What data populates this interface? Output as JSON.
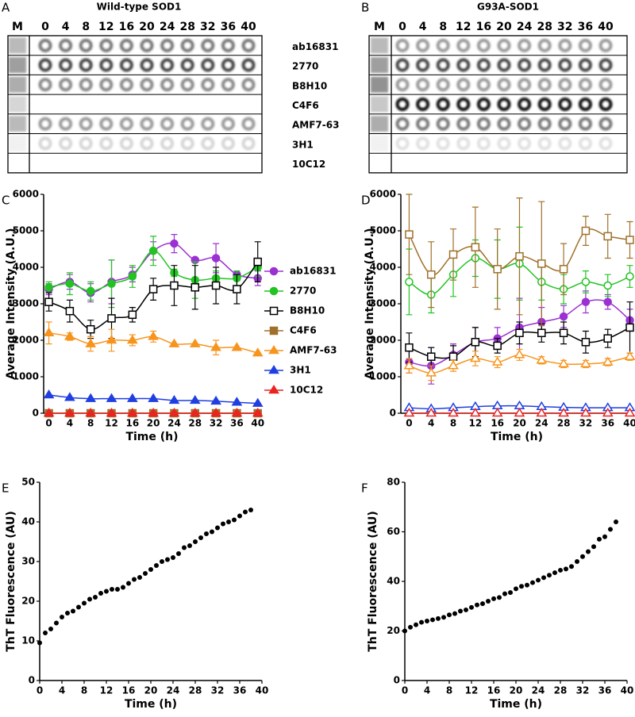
{
  "blots": [
    {
      "panel": "A",
      "title": "Wild-type SOD1",
      "lanes": [
        "M",
        "0",
        "4",
        "8",
        "12",
        "16",
        "20",
        "24",
        "28",
        "32",
        "36",
        "40"
      ]
    },
    {
      "panel": "B",
      "title": "G93A-SOD1",
      "lanes": [
        "M",
        "0",
        "4",
        "8",
        "12",
        "16",
        "20",
        "24",
        "28",
        "32",
        "36",
        "40"
      ]
    }
  ],
  "antibodies": [
    "ab16831",
    "2770",
    "B8H10",
    "C4F6",
    "AMF7-63",
    "3H1",
    "10C12"
  ],
  "chart_data": [
    {
      "type": "line",
      "panel": "C",
      "xlabel": "Time (h)",
      "ylabel": "Average Intensity (A.U.)",
      "xlim": [
        -1,
        40.5
      ],
      "ylim": [
        0,
        6000
      ],
      "xticks": [
        0,
        4,
        8,
        12,
        16,
        20,
        24,
        28,
        32,
        36,
        40
      ],
      "yticks": [
        0,
        1000,
        2000,
        3000,
        4000,
        5000,
        6000
      ],
      "legend": "right",
      "x": [
        0,
        4,
        8,
        12,
        16,
        20,
        24,
        28,
        32,
        36,
        40
      ],
      "series": [
        {
          "name": "ab16831",
          "color": "#9b30d3",
          "marker": "circle",
          "filled": true,
          "values": [
            3400,
            3600,
            3300,
            3600,
            3800,
            4450,
            4650,
            4200,
            4250,
            3800,
            3700
          ],
          "errors": [
            150,
            200,
            250,
            600,
            200,
            250,
            250,
            0,
            400,
            0,
            200
          ]
        },
        {
          "name": "2770",
          "color": "#22c322",
          "marker": "circle",
          "filled": true,
          "values": [
            3450,
            3550,
            3350,
            3550,
            3750,
            4450,
            3850,
            3650,
            3700,
            3700,
            4000
          ],
          "errors": [
            150,
            300,
            250,
            650,
            300,
            400,
            100,
            500,
            200,
            200,
            250
          ]
        },
        {
          "name": "B8H10",
          "color": "#000000",
          "marker": "square",
          "filled": false,
          "values": [
            3050,
            2800,
            2300,
            2600,
            2700,
            3400,
            3500,
            3450,
            3500,
            3400,
            4150
          ],
          "errors": [
            250,
            300,
            250,
            550,
            200,
            300,
            550,
            600,
            500,
            400,
            550
          ]
        },
        {
          "name": "C4F6",
          "color": "#a0702a",
          "marker": "square",
          "filled": true,
          "values": [
            0,
            0,
            0,
            0,
            0,
            0,
            0,
            0,
            0,
            0,
            0
          ]
        },
        {
          "name": "AMF7-63",
          "color": "#f7941d",
          "marker": "triangle",
          "filled": true,
          "values": [
            2200,
            2100,
            1900,
            2000,
            2000,
            2100,
            1900,
            1900,
            1800,
            1800,
            1650
          ],
          "errors": [
            300,
            100,
            200,
            300,
            150,
            150,
            0,
            0,
            200,
            0,
            0
          ]
        },
        {
          "name": "3H1",
          "color": "#1f3fe0",
          "marker": "triangle",
          "filled": true,
          "values": [
            500,
            430,
            400,
            400,
            400,
            400,
            350,
            350,
            330,
            300,
            270
          ]
        },
        {
          "name": "10C12",
          "color": "#e8251f",
          "marker": "triangle",
          "filled": true,
          "values": [
            0,
            0,
            0,
            0,
            0,
            0,
            0,
            0,
            0,
            0,
            0
          ]
        }
      ]
    },
    {
      "type": "line",
      "panel": "D",
      "xlabel": "Time (h)",
      "ylabel": "Average Intensity (A.U.)",
      "xlim": [
        -1.5,
        40.5
      ],
      "ylim": [
        0,
        6000
      ],
      "xticks": [
        0,
        4,
        8,
        12,
        16,
        20,
        24,
        28,
        32,
        36,
        40
      ],
      "yticks": [
        0,
        1000,
        2000,
        3000,
        4000,
        5000,
        6000
      ],
      "x": [
        0,
        4,
        8,
        12,
        16,
        20,
        24,
        28,
        32,
        36,
        40
      ],
      "series": [
        {
          "name": "ab16831",
          "color": "#9b30d3",
          "marker": "circle",
          "filled": true,
          "values": [
            1400,
            1300,
            1600,
            1950,
            2050,
            2350,
            2500,
            2650,
            3050,
            3050,
            2550
          ],
          "errors": [
            300,
            500,
            300,
            400,
            300,
            800,
            400,
            300,
            300,
            200,
            300
          ]
        },
        {
          "name": "2770",
          "color": "#22c322",
          "marker": "circle",
          "filled": false,
          "values": [
            3600,
            3250,
            3800,
            4250,
            3950,
            4100,
            3600,
            3400,
            3600,
            3500,
            3750
          ],
          "errors": [
            900,
            500,
            600,
            500,
            800,
            1000,
            500,
            400,
            300,
            300,
            300
          ]
        },
        {
          "name": "B8H10",
          "color": "#000000",
          "marker": "square",
          "filled": false,
          "values": [
            1800,
            1550,
            1550,
            1950,
            1850,
            2200,
            2200,
            2200,
            1950,
            2050,
            2350
          ],
          "errors": [
            400,
            250,
            300,
            400,
            200,
            300,
            250,
            300,
            300,
            250,
            700
          ]
        },
        {
          "name": "C4F6",
          "color": "#a0702a",
          "marker": "square",
          "filled": false,
          "values": [
            4900,
            3800,
            4350,
            4550,
            3950,
            4300,
            4100,
            3950,
            5000,
            4850,
            4750
          ],
          "errors": [
            1100,
            900,
            700,
            1100,
            1100,
            1600,
            1700,
            700,
            400,
            600,
            500
          ]
        },
        {
          "name": "AMF7-63",
          "color": "#f7941d",
          "marker": "triangle",
          "filled": false,
          "values": [
            1300,
            1100,
            1300,
            1500,
            1400,
            1600,
            1450,
            1350,
            1350,
            1400,
            1550
          ],
          "errors": [
            200,
            200,
            150,
            200,
            150,
            150,
            100,
            100,
            100,
            100,
            100
          ]
        },
        {
          "name": "3H1",
          "color": "#1f3fe0",
          "marker": "triangle",
          "filled": false,
          "values": [
            150,
            120,
            150,
            180,
            200,
            200,
            180,
            160,
            150,
            150,
            150
          ]
        },
        {
          "name": "10C12",
          "color": "#e8251f",
          "marker": "triangle",
          "filled": false,
          "values": [
            0,
            0,
            0,
            0,
            0,
            0,
            0,
            0,
            0,
            0,
            0
          ]
        }
      ]
    },
    {
      "type": "scatter",
      "panel": "E",
      "xlabel": "Time (h)",
      "ylabel": "ThT Fluorescence (AU)",
      "xlim": [
        0,
        40
      ],
      "ylim": [
        0,
        50
      ],
      "xticks": [
        0,
        4,
        8,
        12,
        16,
        20,
        24,
        28,
        32,
        36,
        40
      ],
      "yticks": [
        0,
        10,
        20,
        30,
        40,
        50
      ],
      "color": "#000000",
      "x": [
        0,
        1,
        2,
        3,
        4,
        5,
        6,
        7,
        8,
        9,
        10,
        11,
        12,
        13,
        14,
        15,
        16,
        17,
        18,
        19,
        20,
        21,
        22,
        23,
        24,
        25,
        26,
        27,
        28,
        29,
        30,
        31,
        32,
        33,
        34,
        35,
        36,
        37,
        38
      ],
      "values": [
        9.5,
        12,
        13,
        14.5,
        16,
        17,
        17.5,
        18.5,
        19.5,
        20.5,
        21,
        22,
        22.5,
        23,
        23,
        23.5,
        24.5,
        25.5,
        26,
        27,
        28,
        29,
        30,
        30.5,
        31,
        32,
        33.5,
        34,
        35,
        36,
        37,
        37.5,
        38.5,
        39.5,
        40,
        40.5,
        41.5,
        42.5,
        43
      ]
    },
    {
      "type": "scatter",
      "panel": "F",
      "xlabel": "Time (h)",
      "ylabel": "ThT Fluorescence (AU)",
      "xlim": [
        0,
        40
      ],
      "ylim": [
        0,
        80
      ],
      "xticks": [
        0,
        4,
        8,
        12,
        16,
        20,
        24,
        28,
        32,
        36,
        40
      ],
      "yticks": [
        0,
        20,
        40,
        60,
        80
      ],
      "color": "#000000",
      "x": [
        0,
        1,
        2,
        3,
        4,
        5,
        6,
        7,
        8,
        9,
        10,
        11,
        12,
        13,
        14,
        15,
        16,
        17,
        18,
        19,
        20,
        21,
        22,
        23,
        24,
        25,
        26,
        27,
        28,
        29,
        30,
        31,
        32,
        33,
        34,
        35,
        36,
        37,
        38
      ],
      "values": [
        20,
        21.5,
        22.5,
        23.5,
        24,
        24.5,
        25,
        25.5,
        26.5,
        27,
        28,
        28.5,
        29.5,
        30.5,
        31,
        32,
        33,
        33.5,
        35,
        35.5,
        37,
        38,
        38.5,
        39.5,
        40.5,
        41.5,
        42.5,
        43.5,
        44.5,
        45,
        46,
        48,
        50,
        52,
        54,
        57,
        58,
        61,
        64
      ]
    }
  ]
}
